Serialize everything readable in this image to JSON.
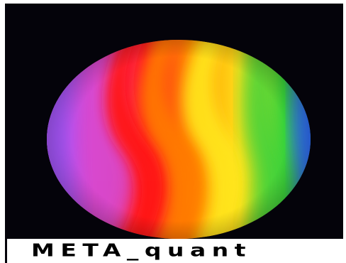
{
  "caption": {
    "text": "META_quant"
  },
  "logo": {
    "icon": "rainbow-sphere-icon",
    "background_color": "#04030a",
    "colors": [
      "#9d4dff",
      "#ff3d8a",
      "#ff1e1e",
      "#ff8a00",
      "#ffe21a",
      "#39d43a",
      "#3f7dff"
    ]
  }
}
